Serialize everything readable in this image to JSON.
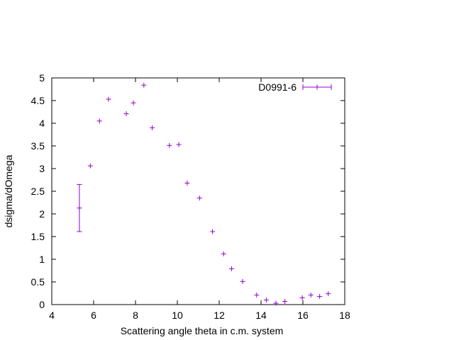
{
  "chart_data": {
    "type": "scatter",
    "title": "",
    "xlabel": "Scattering angle theta in c.m. system",
    "ylabel": "dsigma/dOmega",
    "xlim": [
      4,
      18
    ],
    "ylim": [
      0,
      5
    ],
    "xticks": [
      4,
      6,
      8,
      10,
      12,
      14,
      16,
      18
    ],
    "yticks": [
      0,
      0.5,
      1,
      1.5,
      2,
      2.5,
      3,
      3.5,
      4,
      4.5,
      5
    ],
    "ytick_labels": [
      "0",
      "0.5",
      "1",
      "1.5",
      "2",
      "2.5",
      "3",
      "3.5",
      "4",
      "4.5",
      "5"
    ],
    "grid": false,
    "legend_position": "top-right",
    "series": [
      {
        "name": "D0991-6",
        "color": "#9400d3",
        "marker": "plus",
        "error_bars": true,
        "points": [
          {
            "x": 5.32,
            "y": 2.13,
            "err": 0.52
          },
          {
            "x": 5.84,
            "y": 3.06,
            "err": 0
          },
          {
            "x": 6.28,
            "y": 4.05,
            "err": 0
          },
          {
            "x": 6.71,
            "y": 4.53,
            "err": 0
          },
          {
            "x": 7.56,
            "y": 4.21,
            "err": 0
          },
          {
            "x": 7.9,
            "y": 4.45,
            "err": 0
          },
          {
            "x": 8.4,
            "y": 4.84,
            "err": 0
          },
          {
            "x": 8.8,
            "y": 3.9,
            "err": 0
          },
          {
            "x": 9.62,
            "y": 3.51,
            "err": 0
          },
          {
            "x": 10.07,
            "y": 3.53,
            "err": 0
          },
          {
            "x": 10.47,
            "y": 2.68,
            "err": 0
          },
          {
            "x": 11.06,
            "y": 2.35,
            "err": 0
          },
          {
            "x": 11.68,
            "y": 1.61,
            "err": 0
          },
          {
            "x": 12.21,
            "y": 1.12,
            "err": 0
          },
          {
            "x": 12.59,
            "y": 0.79,
            "err": 0
          },
          {
            "x": 13.12,
            "y": 0.51,
            "err": 0
          },
          {
            "x": 13.79,
            "y": 0.21,
            "err": 0
          },
          {
            "x": 14.25,
            "y": 0.1,
            "err": 0
          },
          {
            "x": 14.71,
            "y": 0.03,
            "err": 0
          },
          {
            "x": 15.14,
            "y": 0.07,
            "err": 0
          },
          {
            "x": 15.97,
            "y": 0.15,
            "err": 0
          },
          {
            "x": 16.38,
            "y": 0.21,
            "err": 0
          },
          {
            "x": 16.8,
            "y": 0.18,
            "err": 0
          },
          {
            "x": 17.21,
            "y": 0.24,
            "err": 0
          }
        ]
      }
    ]
  }
}
